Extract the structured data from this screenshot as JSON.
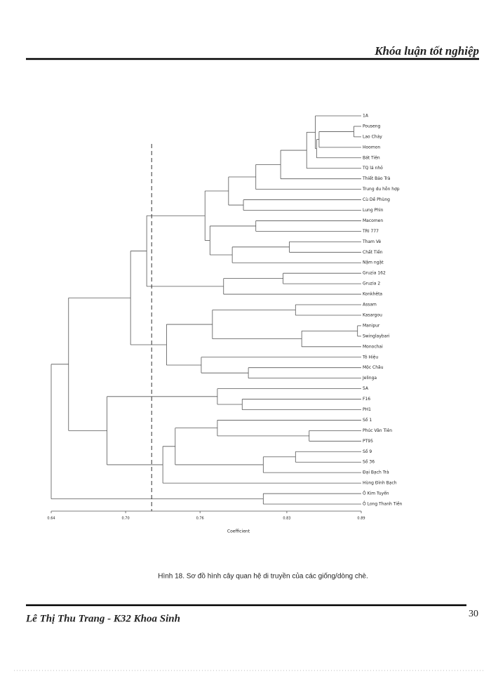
{
  "header": {
    "title": "Khóa luận tốt nghiệp"
  },
  "chart_data": {
    "type": "dendrogram",
    "xlabel": "Coefficient",
    "xlim": [
      0.64,
      0.89
    ],
    "xticks": [
      0.64,
      {
        "value": 0.7,
        "label": "0.70"
      },
      0.76,
      0.83,
      0.89
    ],
    "cutoff": 0.721,
    "tree": {
      "value": 0.64,
      "children": [
        {
          "value": 0.654,
          "children": [
            {
              "value": 0.704,
              "children": [
                {
                  "value": 0.717,
                  "children": [
                    {
                      "value": 0.764,
                      "children": [
                        {
                          "value": 0.783,
                          "children": [
                            {
                              "value": 0.805,
                              "children": [
                                {
                                  "value": 0.825,
                                  "children": [
                                    {
                                      "value": 0.846,
                                      "children": [
                                        {
                                          "value": 0.853,
                                          "children": [
                                            {
                                              "name": "1A"
                                            },
                                            {
                                              "value": 0.854,
                                              "children": [
                                                {
                                                  "value": 0.856,
                                                  "children": [
                                                    {
                                                      "value": 0.884,
                                                      "children": [
                                                        {
                                                          "name": "Pouseng"
                                                        },
                                                        {
                                                          "name": "Lao Chảy"
                                                        }
                                                      ]
                                                    },
                                                    {
                                                      "name": "Hoomon"
                                                    }
                                                  ]
                                                },
                                                {
                                                  "name": "Bát Tiên"
                                                }
                                              ]
                                            }
                                          ]
                                        },
                                        {
                                          "name": "TQ lá nhỏ"
                                        }
                                      ]
                                    },
                                    {
                                      "name": "Thiết Bảo Trà"
                                    }
                                  ]
                                },
                                {
                                  "name": "Trung du hỗn hợp"
                                }
                              ]
                            },
                            {
                              "value": 0.795,
                              "children": [
                                {
                                  "name": "Cù Dề Phùng"
                                },
                                {
                                  "name": "Lung Phìn"
                                }
                              ]
                            }
                          ]
                        },
                        {
                          "value": 0.768,
                          "children": [
                            {
                              "value": 0.805,
                              "children": [
                                {
                                  "name": "Macomen"
                                },
                                {
                                  "name": "TRI 777"
                                }
                              ]
                            },
                            {
                              "value": 0.786,
                              "children": [
                                {
                                  "value": 0.832,
                                  "children": [
                                    {
                                      "name": "Tham Vè"
                                    },
                                    {
                                      "name": "Chất Tiền"
                                    }
                                  ]
                                },
                                {
                                  "name": "Nậm ngặt"
                                }
                              ]
                            }
                          ]
                        }
                      ]
                    },
                    {
                      "value": 0.779,
                      "children": [
                        {
                          "value": 0.827,
                          "children": [
                            {
                              "name": "Gruzia 162"
                            },
                            {
                              "name": "Gruzia 2"
                            }
                          ]
                        },
                        {
                          "name": "Konkhêta"
                        }
                      ]
                    }
                  ]
                },
                {
                  "value": 0.733,
                  "children": [
                    {
                      "value": 0.77,
                      "children": [
                        {
                          "value": 0.837,
                          "children": [
                            {
                              "name": "Assam"
                            },
                            {
                              "name": "Kasargou"
                            }
                          ]
                        },
                        {
                          "value": 0.842,
                          "children": [
                            {
                              "value": 0.887,
                              "children": [
                                {
                                  "name": "Manipur"
                                },
                                {
                                  "name": "Swinglaybari"
                                }
                              ]
                            },
                            {
                              "name": "Monochai"
                            }
                          ]
                        }
                      ]
                    },
                    {
                      "value": 0.761,
                      "children": [
                        {
                          "name": "Tô Hiệu"
                        },
                        {
                          "value": 0.799,
                          "children": [
                            {
                              "name": "Mộc Châu"
                            },
                            {
                              "name": "Jelinga"
                            }
                          ]
                        }
                      ]
                    }
                  ]
                }
              ]
            },
            {
              "value": 0.685,
              "children": [
                {
                  "value": 0.774,
                  "children": [
                    {
                      "name": "5A"
                    },
                    {
                      "value": 0.794,
                      "children": [
                        {
                          "name": "F16"
                        },
                        {
                          "name": "PH1"
                        }
                      ]
                    }
                  ]
                },
                {
                  "value": 0.73,
                  "children": [
                    {
                      "value": 0.74,
                      "children": [
                        {
                          "value": 0.774,
                          "children": [
                            {
                              "name": "Số 1"
                            },
                            {
                              "value": 0.848,
                              "children": [
                                {
                                  "name": "Phúc Vân Tiên"
                                },
                                {
                                  "name": "PT95"
                                }
                              ]
                            }
                          ]
                        },
                        {
                          "value": 0.811,
                          "children": [
                            {
                              "value": 0.837,
                              "children": [
                                {
                                  "name": "Số 9"
                                },
                                {
                                  "name": "Số 36"
                                }
                              ]
                            },
                            {
                              "name": "Đại Bạch Trà"
                            }
                          ]
                        }
                      ]
                    },
                    {
                      "name": "Hùng Đỉnh Bạch"
                    }
                  ]
                }
              ]
            }
          ]
        },
        {
          "value": 0.811,
          "children": [
            {
              "name": "Ô Kim Tuyến"
            },
            {
              "name": "Ô Long Thanh Tiền"
            }
          ]
        }
      ]
    }
  },
  "caption": "Hình 18. Sơ đồ hình cây quan hệ di truyền của các giống/dòng chè.",
  "footer": {
    "author": "Lê Thị Thu Trang - K32 Khoa Sinh",
    "page": 30
  }
}
